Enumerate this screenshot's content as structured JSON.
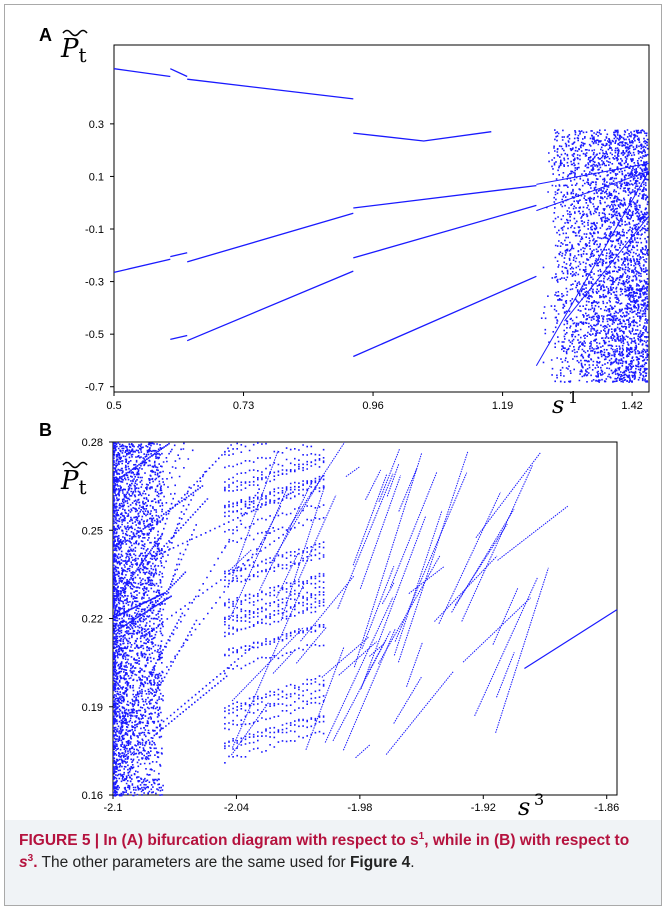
{
  "chart_data": [
    {
      "type": "scatter",
      "panel_label": "A",
      "ylabel": "P̃t",
      "xlabel_var": "s",
      "xlabel_sup": "1",
      "xlim": [
        0.5,
        1.45
      ],
      "ylim": [
        -0.72,
        0.6
      ],
      "xticks": [
        0.5,
        0.73,
        0.96,
        1.19,
        1.42
      ],
      "xtick_labels": [
        "0.5",
        "0.73",
        "0.96",
        "1.19",
        "1.42"
      ],
      "yticks": [
        0.3,
        0.1,
        -0.1,
        -0.3,
        -0.5,
        -0.7
      ],
      "ytick_labels": [
        "0.3",
        "0.1",
        "-0.1",
        "-0.3",
        "-0.5",
        "-0.7"
      ],
      "color": "#1a1aff",
      "branches": [
        {
          "x": [
            0.5,
            0.6
          ],
          "y": [
            0.51,
            0.48
          ]
        },
        {
          "x": [
            0.6,
            0.63
          ],
          "y": [
            0.51,
            0.48
          ]
        },
        {
          "x": [
            0.63,
            0.925
          ],
          "y": [
            0.47,
            0.395
          ]
        },
        {
          "x": [
            0.925,
            1.05,
            1.17
          ],
          "y": [
            0.265,
            0.235,
            0.27
          ]
        },
        {
          "x": [
            0.5,
            0.6
          ],
          "y": [
            -0.265,
            -0.215
          ]
        },
        {
          "x": [
            0.6,
            0.63
          ],
          "y": [
            -0.205,
            -0.19
          ]
        },
        {
          "x": [
            0.63,
            0.925
          ],
          "y": [
            -0.225,
            -0.04
          ]
        },
        {
          "x": [
            0.925,
            1.25
          ],
          "y": [
            -0.02,
            0.065
          ]
        },
        {
          "x": [
            0.6,
            0.63
          ],
          "y": [
            -0.52,
            -0.505
          ]
        },
        {
          "x": [
            0.63,
            0.925
          ],
          "y": [
            -0.525,
            -0.26
          ]
        },
        {
          "x": [
            0.925,
            1.25
          ],
          "y": [
            -0.585,
            -0.28
          ]
        },
        {
          "x": [
            0.925,
            1.25
          ],
          "y": [
            -0.21,
            -0.01
          ]
        }
      ],
      "chaos_range": [
        1.25,
        1.45
      ]
    },
    {
      "type": "scatter",
      "panel_label": "B",
      "ylabel": "P̃t",
      "xlabel_var": "s",
      "xlabel_sup": "3",
      "xlim": [
        -2.1,
        -1.855
      ],
      "ylim": [
        0.16,
        0.28
      ],
      "xticks": [
        -2.1,
        -2.04,
        -1.98,
        -1.92,
        -1.86
      ],
      "xtick_labels": [
        "-2.1",
        "-2.04",
        "-1.98",
        "-1.92",
        "-1.86"
      ],
      "yticks": [
        0.28,
        0.25,
        0.22,
        0.19,
        0.16
      ],
      "ytick_labels": [
        "0.28",
        "0.25",
        "0.22",
        "0.19",
        "0.16"
      ],
      "color": "#1a1aff",
      "final_branch": {
        "x": [
          -1.9,
          -1.855
        ],
        "y": [
          0.203,
          0.223
        ]
      }
    }
  ],
  "caption": {
    "part1": "FIGURE 5 | In (A) bifurcation diagram with respect to s",
    "sup1": "1",
    "part2": ", while in (B) with respect to ",
    "var2": "s",
    "sup2": "3",
    "part3": ".",
    "part4": " The other parameters are the same used for ",
    "ref": "Figure 4",
    "part5": "."
  }
}
